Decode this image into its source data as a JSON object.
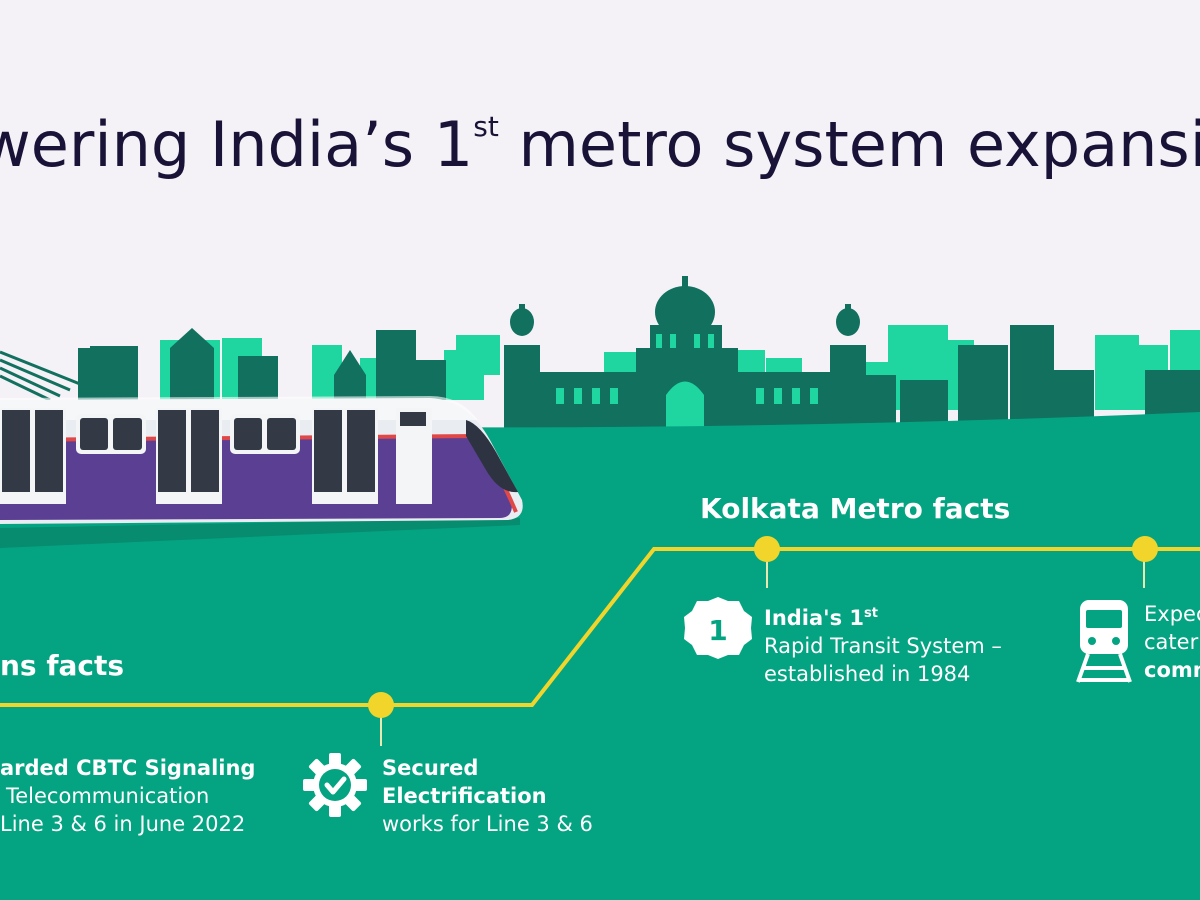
{
  "title": {
    "prefix": "wering India’s 1",
    "superscript": "st",
    "suffix": " metro system expansion"
  },
  "colors": {
    "background": "#f4f1f7",
    "ground": "#04a482",
    "skyline_dark": "#12705f",
    "skyline_light": "#1fd6a0",
    "track": "#f2d52b",
    "train_body": "#5b3f93",
    "title_text": "#1a1338"
  },
  "sections": {
    "kolkata": {
      "heading": "Kolkata Metro facts",
      "fact1": {
        "icon": "number-one-badge-icon",
        "badge_text": "1",
        "line1": "India's 1",
        "line1_sup": "st",
        "line2": "Rapid Transit System –",
        "line3": "established in 1984"
      },
      "fact2": {
        "icon": "train-icon",
        "line1": "Expec",
        "line2": "cater",
        "line3": "comm"
      }
    },
    "siemens": {
      "heading": "ns facts",
      "fact1": {
        "line1": "arded CBTC Signaling",
        "line2": "Telecommunication",
        "line3": "Line 3 & 6 in June 2022"
      },
      "fact2": {
        "icon": "gear-check-icon",
        "line1": "Secured",
        "line2": "Electrification",
        "line3": "works for Line 3 & 6"
      }
    }
  }
}
